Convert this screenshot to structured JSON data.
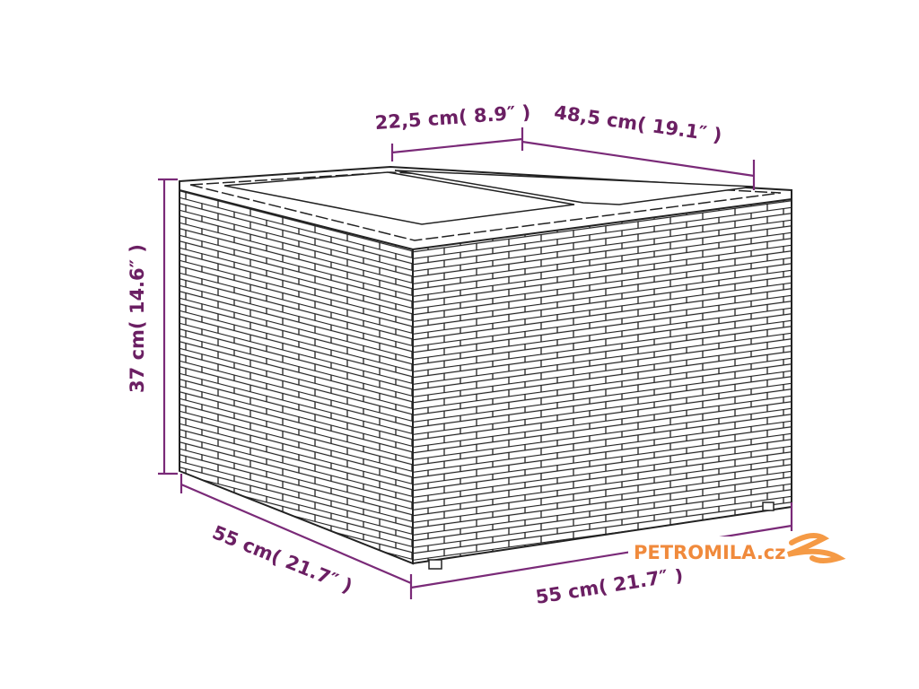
{
  "dimensions": {
    "top_left_width": "22,5 cm( 8.9″ )",
    "top_right_depth": "48,5 cm( 19.1″ )",
    "height": "37 cm( 14.6″ )",
    "bottom_left": "55 cm( 21.7″ )",
    "bottom_right": "55 cm( 21.7″ )"
  },
  "watermark": {
    "text": "PETROMILA.cz"
  },
  "colors": {
    "dimension": "#6b1f63",
    "watermark": "#f08a3c",
    "outline": "#222222"
  }
}
